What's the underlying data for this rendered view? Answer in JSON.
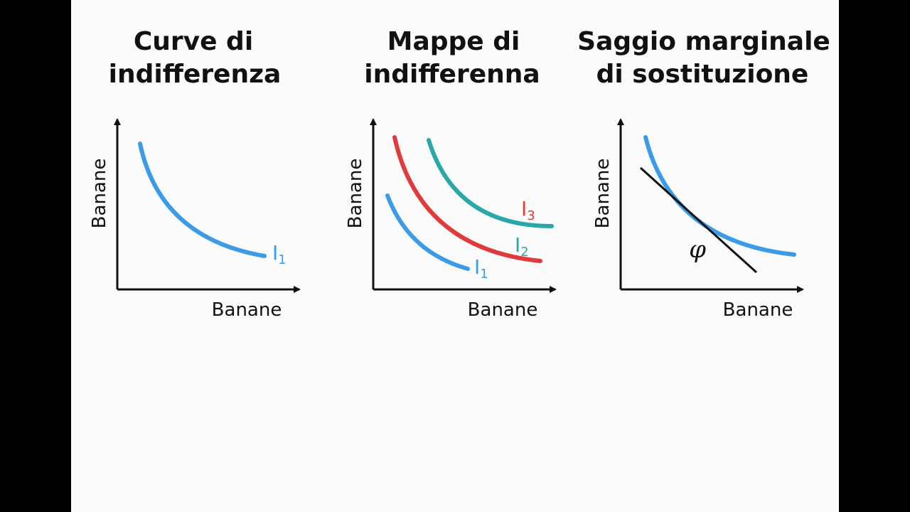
{
  "panels": [
    {
      "title_lines": [
        "Curve di",
        "indifferenza"
      ],
      "y_axis_label": "Banane",
      "x_axis_label": "Banane",
      "curve_labels": [
        {
          "letter": "I",
          "subscript": "1"
        }
      ]
    },
    {
      "title_lines": [
        "Mappe di",
        "indifferenna"
      ],
      "y_axis_label": "Banane",
      "x_axis_label": "Banane",
      "curve_labels": [
        {
          "letter": "I",
          "subscript": "3"
        },
        {
          "letter": "I",
          "subscript": "2"
        },
        {
          "letter": "I",
          "subscript": "1"
        }
      ]
    },
    {
      "title_lines": [
        "Saggio marginale",
        "di sostituzione"
      ],
      "y_axis_label": "Banane",
      "x_axis_label": "Banane",
      "angle_label": "φ"
    }
  ]
}
